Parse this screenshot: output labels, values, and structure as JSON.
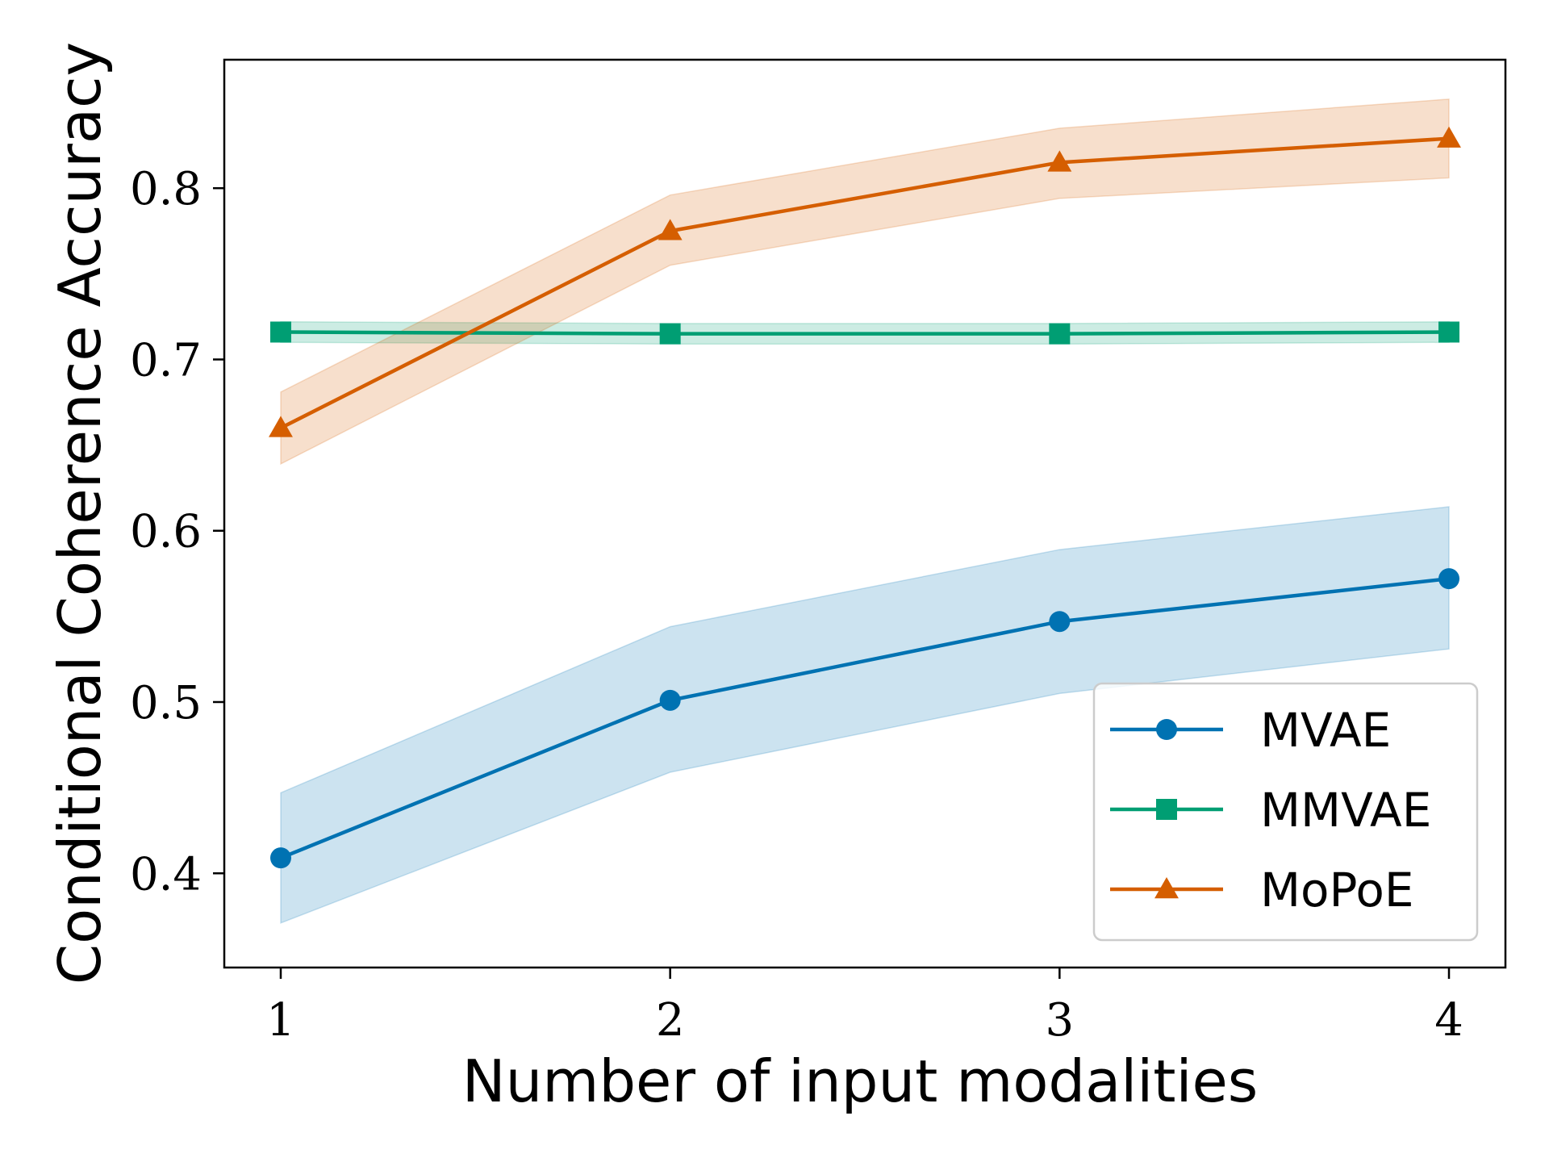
{
  "chart_data": {
    "type": "line",
    "title": "",
    "xlabel": "Number of input modalities",
    "ylabel": "Conditional Coherence Accuracy",
    "x": [
      1,
      2,
      3,
      4
    ],
    "xlim": [
      0.855,
      4.145
    ],
    "ylim": [
      0.345,
      0.875
    ],
    "xticks": [
      1,
      2,
      3,
      4
    ],
    "xtick_labels": [
      "1",
      "2",
      "3",
      "4"
    ],
    "yticks": [
      0.4,
      0.5,
      0.6,
      0.7,
      0.8
    ],
    "ytick_labels": [
      "0.4",
      "0.5",
      "0.6",
      "0.7",
      "0.8"
    ],
    "grid": false,
    "legend_position": "lower-right",
    "series": [
      {
        "name": "MVAE",
        "color": "#0072b2",
        "marker": "circle",
        "values": [
          0.409,
          0.501,
          0.547,
          0.572
        ],
        "lower": [
          0.371,
          0.459,
          0.505,
          0.531
        ],
        "upper": [
          0.447,
          0.544,
          0.589,
          0.614
        ]
      },
      {
        "name": "MMVAE",
        "color": "#009e73",
        "marker": "square",
        "values": [
          0.716,
          0.715,
          0.715,
          0.716
        ],
        "lower": [
          0.71,
          0.709,
          0.709,
          0.71
        ],
        "upper": [
          0.722,
          0.721,
          0.721,
          0.722
        ]
      },
      {
        "name": "MoPoE",
        "color": "#d55e00",
        "marker": "triangle",
        "values": [
          0.66,
          0.775,
          0.815,
          0.829
        ],
        "lower": [
          0.639,
          0.755,
          0.794,
          0.806
        ],
        "upper": [
          0.681,
          0.796,
          0.835,
          0.852
        ]
      }
    ]
  }
}
